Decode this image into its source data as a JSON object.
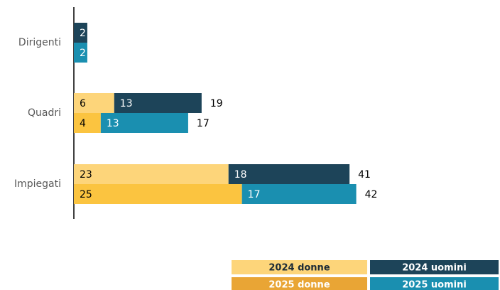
{
  "chart_data": {
    "type": "bar",
    "orientation": "horizontal",
    "stacked": true,
    "categories": [
      "Dirigenti",
      "Quadri",
      "Impiegati"
    ],
    "xlim": [
      0,
      60
    ],
    "series": [
      {
        "name": "2024 donne",
        "stack": "2024",
        "color": "#fdd57a",
        "legend_color": "#fdd57a",
        "values": [
          null,
          6,
          23
        ]
      },
      {
        "name": "2024 uomini",
        "stack": "2024",
        "color": "#1d4459",
        "legend_color": "#1d4459",
        "values": [
          2,
          13,
          18
        ]
      },
      {
        "name": "2025 donne",
        "stack": "2025",
        "color": "#fbc440",
        "legend_color": "#e9a535",
        "values": [
          null,
          4,
          25
        ]
      },
      {
        "name": "2025 uomini",
        "stack": "2025",
        "color": "#1a8fb0",
        "legend_color": "#1a8fb0",
        "values": [
          2,
          13,
          17
        ]
      }
    ],
    "stack_totals": {
      "2024": [
        null,
        19,
        41
      ],
      "2025": [
        null,
        17,
        42
      ]
    }
  }
}
